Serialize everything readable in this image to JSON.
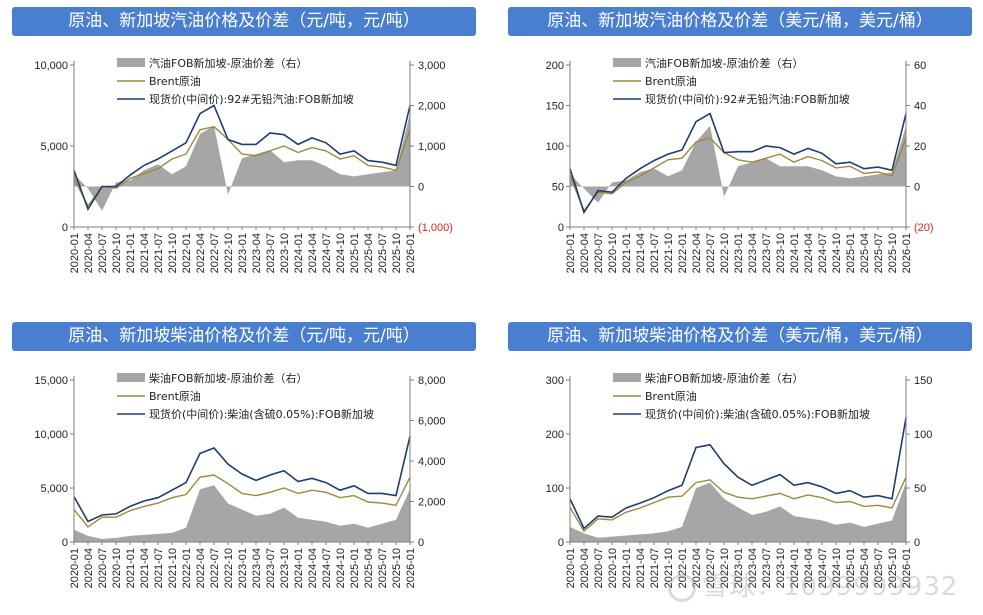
{
  "colors": {
    "title_bg": "#4a7fd0",
    "spread": "#a6a6a6",
    "brent": "#9c8a3c",
    "spot": "#1f3d6d",
    "negative_tick": "#e0251b"
  },
  "watermark": "雪球：1099999932",
  "chart_data": [
    {
      "type": "line",
      "title": "原油、新加坡汽油价格及价差（元/吨，元/吨）",
      "x": [
        "2020-01",
        "2020-04",
        "2020-07",
        "2020-10",
        "2021-01",
        "2021-04",
        "2021-07",
        "2021-10",
        "2022-01",
        "2022-04",
        "2022-07",
        "2022-10",
        "2023-01",
        "2023-04",
        "2023-07",
        "2023-10",
        "2024-01",
        "2024-04",
        "2024-07",
        "2024-10",
        "2025-01",
        "2025-04",
        "2025-07",
        "2025-10",
        "2026-01"
      ],
      "left_axis": {
        "ticks": [
          "0",
          "5,000",
          "10,000"
        ],
        "min": 0,
        "max": 10000
      },
      "right_axis": {
        "ticks": [
          "(1,000)",
          "0",
          "1,000",
          "2,000",
          "3,000"
        ],
        "min": -1000,
        "max": 3000
      },
      "legend": [
        "汽油FOB新加坡-原油价差（右）",
        "Brent原油",
        "现货价(中间价):92#无铅汽油:FOB新加坡"
      ],
      "series": [
        {
          "name": "汽油FOB新加坡-原油价差（右）",
          "axis": "right",
          "kind": "area",
          "values": [
            300,
            -50,
            -600,
            100,
            150,
            400,
            550,
            300,
            500,
            1300,
            1500,
            -200,
            700,
            800,
            900,
            600,
            650,
            650,
            500,
            300,
            250,
            300,
            350,
            400,
            1800
          ]
        },
        {
          "name": "Brent原油",
          "axis": "left",
          "kind": "line",
          "values": [
            3000,
            1300,
            2500,
            2400,
            3000,
            3300,
            3600,
            4200,
            4500,
            6000,
            6200,
            5400,
            4500,
            4400,
            4700,
            5000,
            4600,
            4900,
            4700,
            4200,
            4400,
            3800,
            3700,
            3500,
            6000
          ]
        },
        {
          "name": "现货价(中间价):92#无铅汽油:FOB新加坡",
          "axis": "left",
          "kind": "line",
          "values": [
            3500,
            1100,
            2500,
            2500,
            3200,
            3800,
            4200,
            4700,
            5200,
            7000,
            7500,
            5400,
            5100,
            5100,
            5800,
            5700,
            5100,
            5500,
            5200,
            4500,
            4700,
            4100,
            4000,
            3800,
            7500
          ]
        }
      ]
    },
    {
      "type": "line",
      "title": "原油、新加坡汽油价格及价差（美元/桶，美元/桶）",
      "x": [
        "2020-01",
        "2020-04",
        "2020-07",
        "2020-10",
        "2021-01",
        "2021-04",
        "2021-07",
        "2021-10",
        "2022-01",
        "2022-04",
        "2022-07",
        "2022-10",
        "2023-01",
        "2023-04",
        "2023-07",
        "2023-10",
        "2024-01",
        "2024-04",
        "2024-07",
        "2024-10",
        "2025-01",
        "2025-04",
        "2025-07",
        "2025-10",
        "2026-01"
      ],
      "left_axis": {
        "ticks": [
          "0",
          "50",
          "100",
          "150",
          "200"
        ],
        "min": 0,
        "max": 200
      },
      "right_axis": {
        "ticks": [
          "(20)",
          "0",
          "20",
          "40",
          "60"
        ],
        "min": -20,
        "max": 60
      },
      "legend": [
        "汽油FOB新加坡-原油价差（右）",
        "Brent原油",
        "现货价(中间价):92#无铅汽油:FOB新加坡"
      ],
      "series": [
        {
          "name": "汽油FOB新加坡-原油价差（右）",
          "axis": "right",
          "kind": "area",
          "values": [
            6,
            -1,
            -8,
            2,
            3,
            7,
            9,
            5,
            8,
            22,
            30,
            -5,
            10,
            12,
            14,
            10,
            10,
            10,
            8,
            5,
            4,
            5,
            6,
            7,
            30
          ]
        },
        {
          "name": "Brent原油",
          "axis": "left",
          "kind": "line",
          "values": [
            64,
            20,
            43,
            41,
            55,
            63,
            73,
            83,
            85,
            105,
            110,
            92,
            83,
            80,
            85,
            90,
            80,
            87,
            82,
            73,
            75,
            66,
            68,
            63,
            110
          ]
        },
        {
          "name": "现货价(中间价):92#无铅汽油:FOB新加坡",
          "axis": "left",
          "kind": "line",
          "values": [
            72,
            18,
            45,
            43,
            60,
            72,
            82,
            90,
            95,
            130,
            140,
            92,
            93,
            93,
            100,
            98,
            90,
            97,
            91,
            78,
            80,
            72,
            74,
            70,
            140
          ]
        }
      ]
    },
    {
      "type": "line",
      "title": "原油、新加坡柴油价格及价差（元/吨，元/吨）",
      "x": [
        "2020-01",
        "2020-04",
        "2020-07",
        "2020-10",
        "2021-01",
        "2021-04",
        "2021-07",
        "2021-10",
        "2022-01",
        "2022-04",
        "2022-07",
        "2022-10",
        "2023-01",
        "2023-04",
        "2023-07",
        "2023-10",
        "2024-01",
        "2024-04",
        "2024-07",
        "2024-10",
        "2025-01",
        "2025-04",
        "2025-07",
        "2025-10",
        "2026-01"
      ],
      "left_axis": {
        "ticks": [
          "0",
          "5,000",
          "10,000",
          "15,000"
        ],
        "min": 0,
        "max": 15000
      },
      "right_axis": {
        "ticks": [
          "0",
          "2,000",
          "4,000",
          "6,000",
          "8,000"
        ],
        "min": 0,
        "max": 8000
      },
      "legend": [
        "柴油FOB新加坡-原油价差（右）",
        "Brent原油",
        "现货价(中间价):柴油(含硫0.05%):FOB新加坡"
      ],
      "series": [
        {
          "name": "柴油FOB新加坡-原油价差（右）",
          "axis": "right",
          "kind": "area",
          "values": [
            600,
            300,
            150,
            200,
            300,
            350,
            400,
            450,
            700,
            2600,
            2800,
            1900,
            1600,
            1300,
            1400,
            1700,
            1200,
            1100,
            1000,
            800,
            900,
            700,
            900,
            1100,
            2600
          ]
        },
        {
          "name": "Brent原油",
          "axis": "left",
          "kind": "line",
          "values": [
            3000,
            1400,
            2300,
            2300,
            2900,
            3300,
            3600,
            4100,
            4400,
            6000,
            6200,
            5400,
            4500,
            4300,
            4600,
            5000,
            4500,
            4800,
            4600,
            4100,
            4300,
            3700,
            3600,
            3400,
            6000
          ]
        },
        {
          "name": "现货价(中间价):柴油(含硫0.05%):FOB新加坡",
          "axis": "left",
          "kind": "line",
          "values": [
            4200,
            1900,
            2500,
            2600,
            3300,
            3800,
            4100,
            4800,
            5500,
            8200,
            8700,
            7200,
            6300,
            5700,
            6200,
            6600,
            5600,
            5900,
            5500,
            4800,
            5200,
            4500,
            4500,
            4300,
            9800
          ]
        }
      ]
    },
    {
      "type": "line",
      "title": "原油、新加坡柴油价格及价差（美元/桶，美元/桶）",
      "x": [
        "2020-01",
        "2020-04",
        "2020-07",
        "2020-10",
        "2021-01",
        "2021-04",
        "2021-07",
        "2021-10",
        "2022-01",
        "2022-04",
        "2022-07",
        "2022-10",
        "2023-01",
        "2023-04",
        "2023-07",
        "2023-10",
        "2024-01",
        "2024-04",
        "2024-07",
        "2024-10",
        "2025-01",
        "2025-04",
        "2025-07",
        "2025-10",
        "2026-01"
      ],
      "left_axis": {
        "ticks": [
          "0",
          "100",
          "200",
          "300"
        ],
        "min": 0,
        "max": 300
      },
      "right_axis": {
        "ticks": [
          "0",
          "50",
          "100",
          "150"
        ],
        "min": 0,
        "max": 150
      },
      "legend": [
        "柴油FOB新加坡-原油价差（右）",
        "Brent原油",
        "现货价(中间价):柴油(含硫0.05%):FOB新加坡"
      ],
      "series": [
        {
          "name": "柴油FOB新加坡-原油价差（右）",
          "axis": "right",
          "kind": "area",
          "values": [
            14,
            8,
            4,
            5,
            6,
            7,
            8,
            10,
            14,
            50,
            55,
            40,
            32,
            25,
            28,
            33,
            24,
            22,
            20,
            16,
            18,
            14,
            17,
            20,
            55
          ]
        },
        {
          "name": "Brent原油",
          "axis": "left",
          "kind": "line",
          "values": [
            64,
            20,
            43,
            41,
            55,
            63,
            73,
            83,
            85,
            110,
            115,
            92,
            83,
            80,
            85,
            90,
            80,
            87,
            82,
            73,
            75,
            66,
            68,
            63,
            120
          ]
        },
        {
          "name": "现货价(中间价):柴油(含硫0.05%):FOB新加坡",
          "axis": "left",
          "kind": "line",
          "values": [
            80,
            25,
            48,
            46,
            63,
            72,
            82,
            95,
            105,
            175,
            180,
            145,
            120,
            105,
            115,
            125,
            105,
            110,
            102,
            90,
            95,
            83,
            86,
            80,
            230
          ]
        }
      ]
    }
  ]
}
